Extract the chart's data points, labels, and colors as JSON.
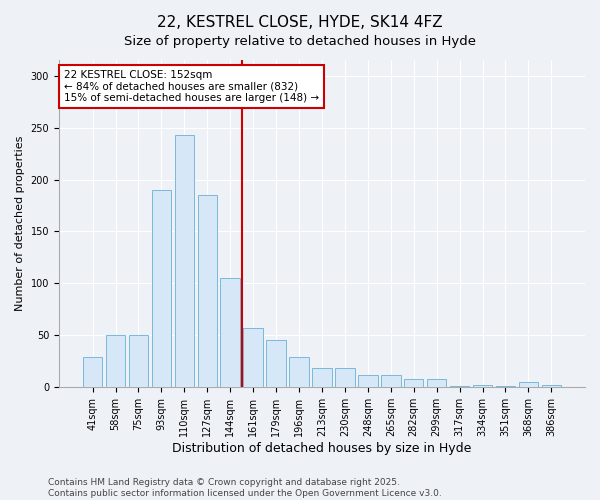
{
  "title1": "22, KESTREL CLOSE, HYDE, SK14 4FZ",
  "title2": "Size of property relative to detached houses in Hyde",
  "xlabel": "Distribution of detached houses by size in Hyde",
  "ylabel": "Number of detached properties",
  "categories": [
    "41sqm",
    "58sqm",
    "75sqm",
    "93sqm",
    "110sqm",
    "127sqm",
    "144sqm",
    "161sqm",
    "179sqm",
    "196sqm",
    "213sqm",
    "230sqm",
    "248sqm",
    "265sqm",
    "282sqm",
    "299sqm",
    "317sqm",
    "334sqm",
    "351sqm",
    "368sqm",
    "386sqm"
  ],
  "values": [
    29,
    50,
    50,
    190,
    243,
    185,
    105,
    57,
    46,
    29,
    19,
    19,
    12,
    12,
    8,
    8,
    1,
    2,
    1,
    5,
    2
  ],
  "bar_color": "#d6e8f7",
  "bar_edge_color": "#7ab8d9",
  "vline_color": "#cc0000",
  "annotation_title": "22 KESTREL CLOSE: 152sqm",
  "annotation_line1": "← 84% of detached houses are smaller (832)",
  "annotation_line2": "15% of semi-detached houses are larger (148) →",
  "annotation_box_facecolor": "white",
  "annotation_box_edgecolor": "#cc0000",
  "ylim": [
    0,
    315
  ],
  "yticks": [
    0,
    50,
    100,
    150,
    200,
    250,
    300
  ],
  "footer1": "Contains HM Land Registry data © Crown copyright and database right 2025.",
  "footer2": "Contains public sector information licensed under the Open Government Licence v3.0.",
  "bg_color": "#eef2f7",
  "plot_bg_color": "#eef2f7",
  "grid_color": "#ffffff",
  "title1_fontsize": 11,
  "title2_fontsize": 9.5,
  "xlabel_fontsize": 9,
  "ylabel_fontsize": 8,
  "tick_fontsize": 7,
  "footer_fontsize": 6.5,
  "annot_fontsize": 7.5
}
